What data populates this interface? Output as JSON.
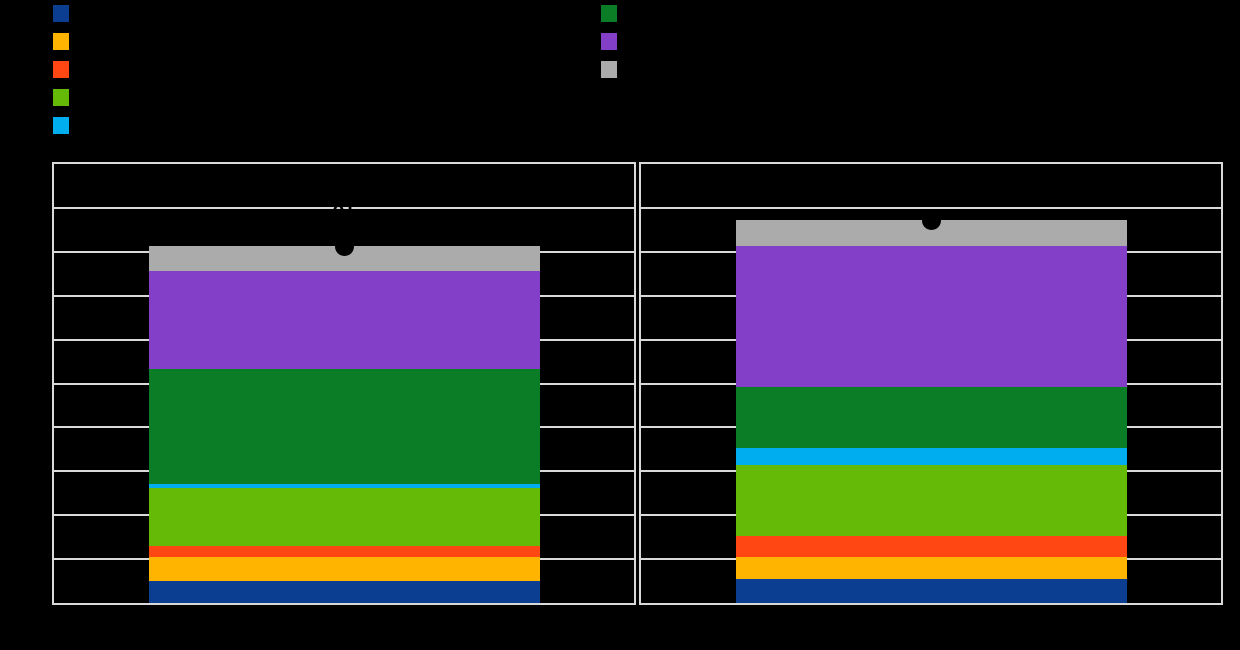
{
  "page": {
    "background": "#000000",
    "text_color": "#000000",
    "note": "all chart text is rendered black on a black background and is not legible"
  },
  "legend": {
    "swatch_size": 17,
    "label_color": "#000000",
    "columns": [
      {
        "items": [
          {
            "name": "navy",
            "color": "#0B3D91",
            "label": ""
          },
          {
            "name": "amber",
            "color": "#FFB400",
            "label": ""
          },
          {
            "name": "red-orange",
            "color": "#FF4713",
            "label": ""
          },
          {
            "name": "lime-green",
            "color": "#65B907",
            "label": ""
          },
          {
            "name": "cyan",
            "color": "#00AEEF",
            "label": ""
          }
        ]
      },
      {
        "items": [
          {
            "name": "dark-green",
            "color": "#0A7D26",
            "label": ""
          },
          {
            "name": "purple",
            "color": "#833FC8",
            "label": ""
          },
          {
            "name": "gray",
            "color": "#ABABAB",
            "label": ""
          }
        ]
      }
    ]
  },
  "chart_data": {
    "type": "bar",
    "stacked": true,
    "orientation": "vertical",
    "facet_count": 2,
    "categories": [
      "",
      ""
    ],
    "series": [
      {
        "name": "navy",
        "color": "#0B3D91",
        "values": [
          5.1,
          5.5
        ]
      },
      {
        "name": "amber",
        "color": "#FFB400",
        "values": [
          5.4,
          4.9
        ]
      },
      {
        "name": "red-orange",
        "color": "#FF4713",
        "values": [
          2.4,
          4.9
        ]
      },
      {
        "name": "lime-green",
        "color": "#65B907",
        "values": [
          13.4,
          16.1
        ]
      },
      {
        "name": "cyan",
        "color": "#00AEEF",
        "values": [
          0.9,
          3.9
        ]
      },
      {
        "name": "dark-green",
        "color": "#0A7D26",
        "values": [
          26.2,
          13.8
        ]
      },
      {
        "name": "purple",
        "color": "#833FC8",
        "values": [
          22.2,
          32.2
        ]
      },
      {
        "name": "gray",
        "color": "#ABABAB",
        "values": [
          5.7,
          5.9
        ]
      }
    ],
    "totals": [
      81.3,
      87.2
    ],
    "total_labels": [
      "81",
      "87"
    ],
    "markers": {
      "shape": "circle",
      "color": "#000000",
      "diameter": 19,
      "values": [
        81.3,
        87.2
      ]
    },
    "title": "",
    "xlabel": "",
    "ylabel": "",
    "ylim": [
      0,
      100
    ],
    "ytick_step": 10,
    "grid": {
      "horizontal": true,
      "vertical": false,
      "color": "#D9D9D9"
    },
    "panel_border_color": "#D9D9D9",
    "text_color": "#000000",
    "legend_position": "top"
  }
}
